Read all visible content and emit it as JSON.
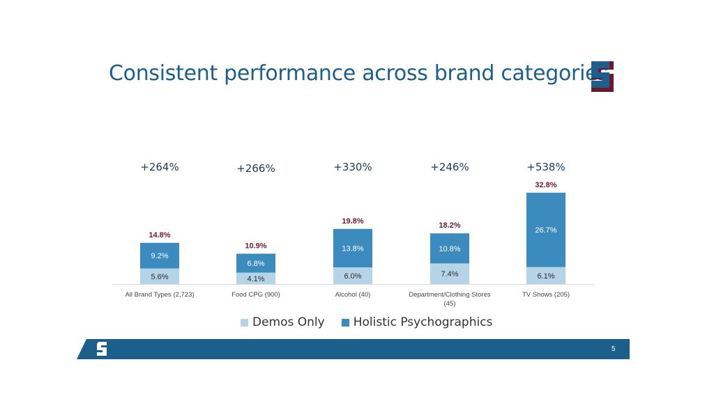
{
  "slide": {
    "title": "Consistent performance across brand categories",
    "page_number": "5"
  },
  "colors": {
    "demos": "#b6d4e7",
    "psycho": "#3b8bbf",
    "title": "#1a5f8e",
    "total_label": "#6b1a2e",
    "pct_label": "#1f3b57",
    "footer": "#1b5f8c"
  },
  "legend": {
    "demos_label": "Demos Only",
    "psycho_label": "Holistic Psychographics"
  },
  "chart_data": {
    "type": "bar",
    "stacked": true,
    "categories": [
      "All Brand Types (2,723)",
      "Food CPG (900)",
      "Alcohol (40)",
      "Department/Clothing Stores (45)",
      "TV Shows (205)"
    ],
    "category_lines": [
      [
        "All Brand Types (2,723)"
      ],
      [
        "Food CPG (900)"
      ],
      [
        "Alcohol (40)"
      ],
      [
        "Department/Clothing Stores",
        "(45)"
      ],
      [
        "TV Shows (205)"
      ]
    ],
    "series": [
      {
        "name": "Demos Only",
        "values": [
          5.6,
          4.1,
          6.0,
          7.4,
          6.1
        ],
        "labels": [
          "5.6%",
          "4.1%",
          "6.0%",
          "7.4%",
          "6.1%"
        ]
      },
      {
        "name": "Holistic Psychographics",
        "values": [
          9.2,
          6.8,
          13.8,
          10.8,
          26.7
        ],
        "labels": [
          "9.2%",
          "6.8%",
          "13.8%",
          "10.8%",
          "26.7%"
        ]
      }
    ],
    "totals": [
      "14.8%",
      "10.9%",
      "19.8%",
      "18.2%",
      "32.8%"
    ],
    "lift_labels": [
      "+264%",
      "+266%",
      "+330%",
      "+246%",
      "+538%"
    ],
    "ylim": [
      0,
      35
    ],
    "grid": false,
    "legend_position": "bottom"
  }
}
